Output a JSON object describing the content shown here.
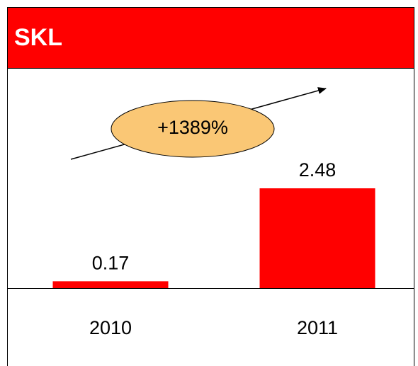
{
  "chart_data": {
    "type": "bar",
    "title": "SKL",
    "annotation": "+1389%",
    "categories": [
      "2010",
      "2011"
    ],
    "values": [
      0.17,
      2.48
    ],
    "color": "#ff0000"
  }
}
